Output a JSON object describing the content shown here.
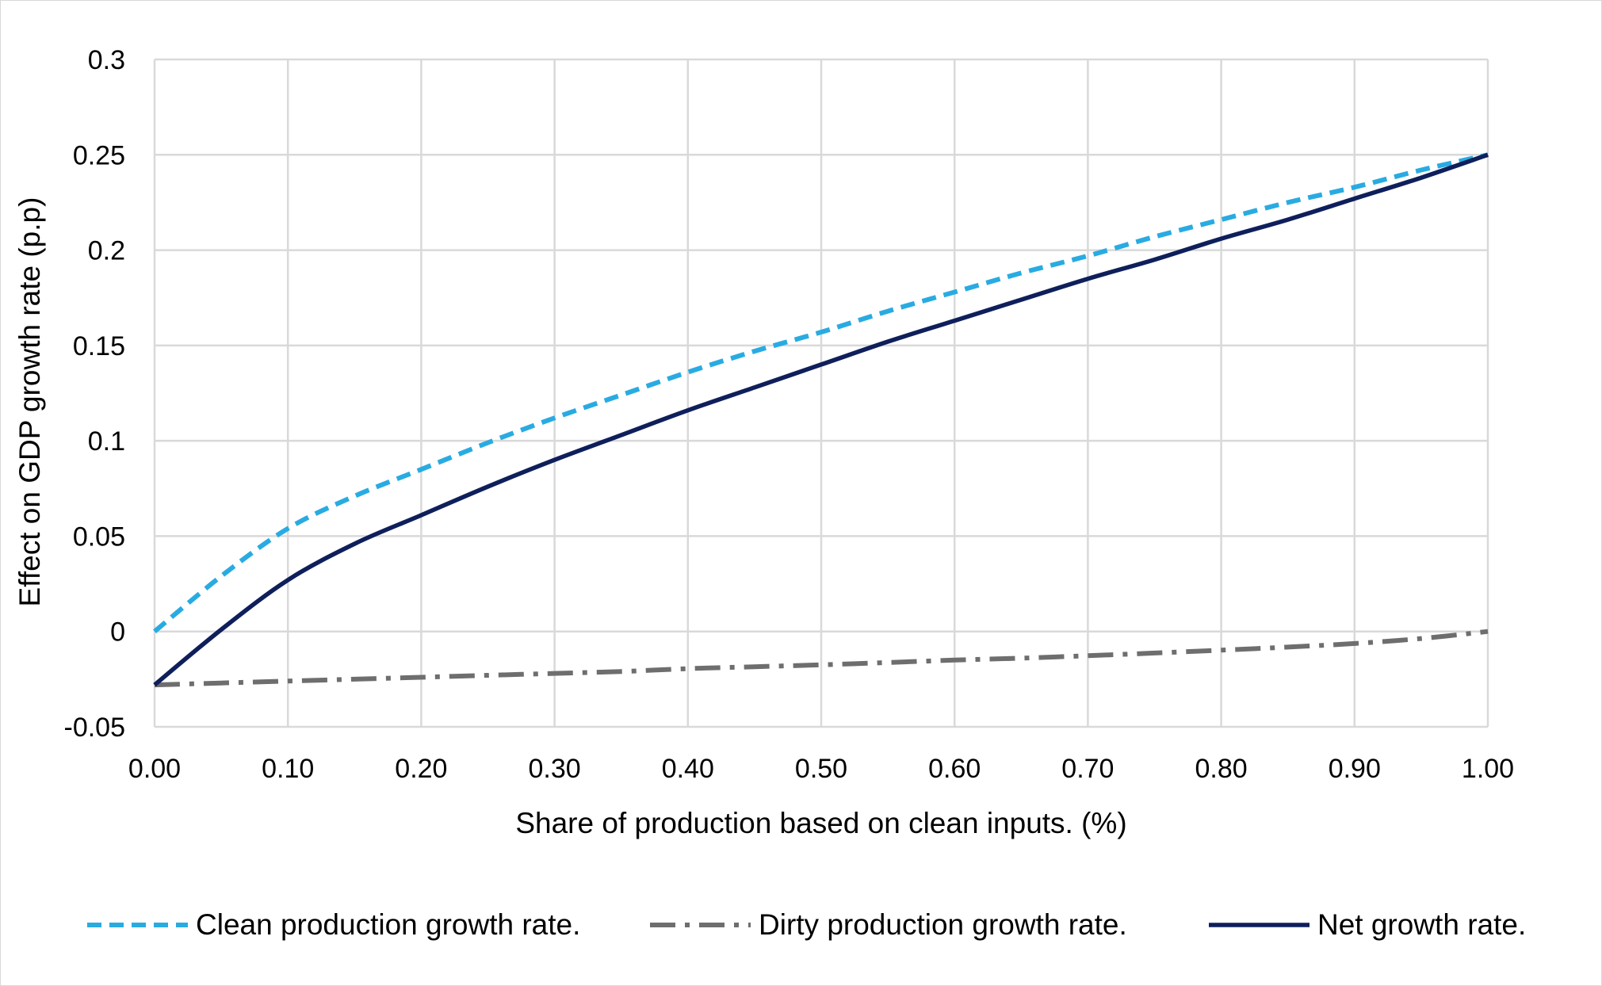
{
  "chart_data": {
    "type": "line",
    "title": "",
    "xlabel": "Share of production based on clean inputs. (%)",
    "ylabel": "Effect on GDP growth rate (p.p)",
    "xlim": [
      0,
      1
    ],
    "ylim": [
      -0.05,
      0.3
    ],
    "x_ticks": [
      0,
      0.1,
      0.2,
      0.3,
      0.4,
      0.5,
      0.6,
      0.7,
      0.8,
      0.9,
      1.0
    ],
    "x_tick_labels": [
      "0.00",
      "0.10",
      "0.20",
      "0.30",
      "0.40",
      "0.50",
      "0.60",
      "0.70",
      "0.80",
      "0.90",
      "1.00"
    ],
    "y_ticks": [
      -0.05,
      0,
      0.05,
      0.1,
      0.15,
      0.2,
      0.25,
      0.3
    ],
    "y_tick_labels": [
      "-0.05",
      "0",
      "0.05",
      "0.1",
      "0.15",
      "0.2",
      "0.25",
      "0.3"
    ],
    "grid": true,
    "legend_position": "bottom",
    "x": [
      0,
      0.05,
      0.1,
      0.15,
      0.2,
      0.25,
      0.3,
      0.35,
      0.4,
      0.45,
      0.5,
      0.55,
      0.6,
      0.65,
      0.7,
      0.75,
      0.8,
      0.85,
      0.9,
      0.95,
      1.0
    ],
    "series": [
      {
        "name": "Clean production growth rate.",
        "color": "#29abe2",
        "style": "dashed",
        "values": [
          0.0,
          0.029,
          0.054,
          0.071,
          0.085,
          0.099,
          0.112,
          0.124,
          0.136,
          0.147,
          0.157,
          0.168,
          0.178,
          0.188,
          0.197,
          0.207,
          0.216,
          0.225,
          0.233,
          0.242,
          0.25
        ]
      },
      {
        "name": "Dirty production growth rate.",
        "color": "#6e6e6e",
        "style": "dash-dot",
        "values": [
          -0.028,
          -0.027,
          -0.026,
          -0.025,
          -0.024,
          -0.023,
          -0.022,
          -0.021,
          -0.0195,
          -0.0185,
          -0.0175,
          -0.0163,
          -0.015,
          -0.014,
          -0.0127,
          -0.0113,
          -0.0098,
          -0.0082,
          -0.0063,
          -0.0037,
          0.0
        ]
      },
      {
        "name": "Net growth rate.",
        "color": "#0e1f5b",
        "style": "solid",
        "values": [
          -0.028,
          0.001,
          0.027,
          0.046,
          0.061,
          0.076,
          0.09,
          0.103,
          0.116,
          0.128,
          0.14,
          0.152,
          0.163,
          0.174,
          0.185,
          0.195,
          0.206,
          0.216,
          0.227,
          0.238,
          0.25
        ]
      }
    ]
  }
}
